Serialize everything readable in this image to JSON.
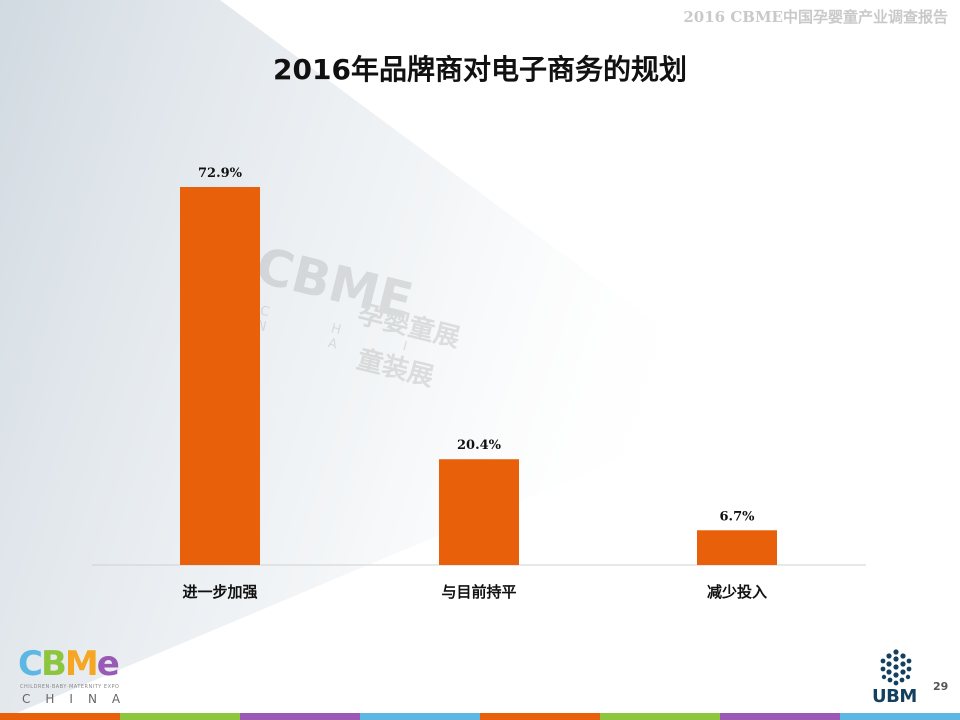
{
  "header": {
    "title": "2016 CBME中国孕婴童产业调查报告"
  },
  "slide": {
    "title": "2016年品牌商对电子商务的规划",
    "page_number": "29"
  },
  "watermark": {
    "logo": "CBME",
    "line1": "孕婴童展",
    "line2": "童装展",
    "sub": "C H I N A"
  },
  "logos": {
    "cbme": {
      "letters": [
        "C",
        "B",
        "M",
        "e"
      ],
      "letter_colors": [
        "#5db7e3",
        "#8cc63f",
        "#f5a623",
        "#9b59b6"
      ],
      "subtitle": "CHILDREN·BABY·MATERNITY EXPO",
      "china": "CHINA"
    },
    "ubm": {
      "text": "UBM"
    }
  },
  "colors": {
    "bar": "#e8600a",
    "bottom_bar": [
      "#e8600a",
      "#8cc63f",
      "#9b59b6",
      "#5db7e3",
      "#e8600a",
      "#8cc63f",
      "#9b59b6",
      "#5db7e3"
    ]
  },
  "chart_data": {
    "type": "bar",
    "categories": [
      "进一步加强",
      "与目前持平",
      "减少投入"
    ],
    "values": [
      72.9,
      20.4,
      6.7
    ],
    "labels": [
      "72.9%",
      "20.4%",
      "6.7%"
    ],
    "title": "2016年品牌商对电子商务的规划",
    "xlabel": "",
    "ylabel": "",
    "ylim": [
      0,
      75
    ],
    "grid": false,
    "legend": "none"
  }
}
